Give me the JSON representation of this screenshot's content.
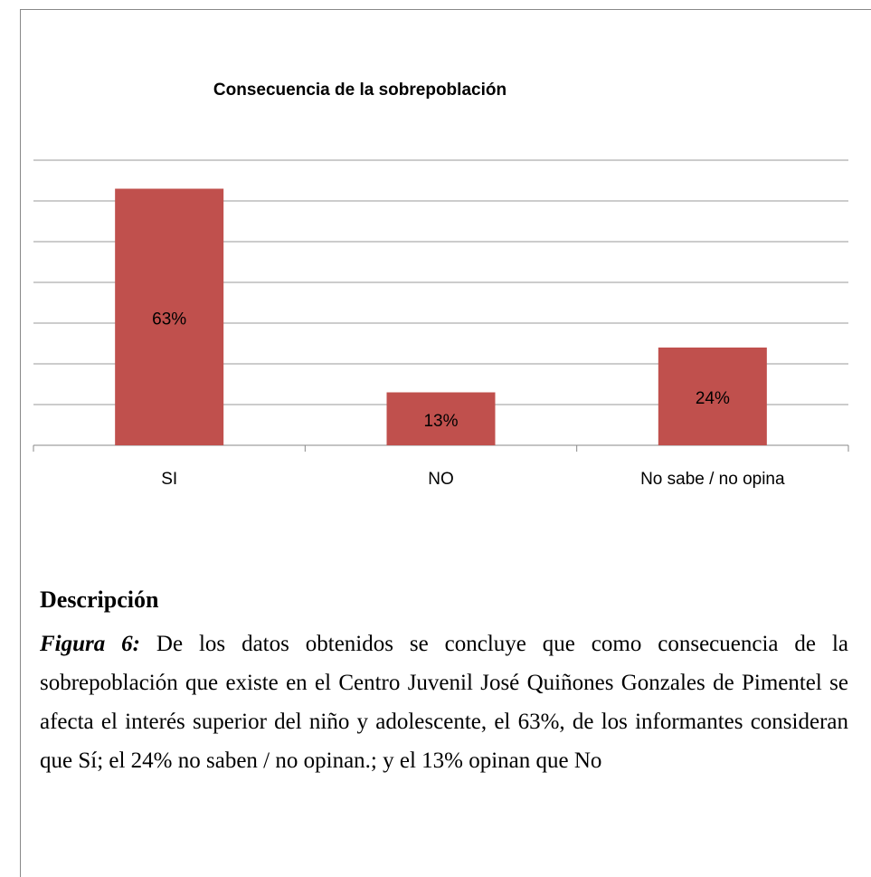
{
  "chart_data": {
    "type": "bar",
    "title": "Consecuencia de la sobrepoblación",
    "categories": [
      "SI",
      "NO",
      "No sabe / no opina"
    ],
    "values": [
      63,
      13,
      24
    ],
    "value_labels": [
      "63%",
      "13%",
      "24%"
    ],
    "color": "#c0504d",
    "ylim": [
      0,
      70
    ],
    "yticks": [
      0,
      10,
      20,
      30,
      40,
      50,
      60,
      70
    ],
    "grid": true
  },
  "description": {
    "heading": "Descripción",
    "figure_label": "Figura 6:",
    "text": "De los datos obtenidos se concluye que como consecuencia de la sobrepoblación que existe en el Centro Juvenil José Quiñones Gonzales de Pimentel se afecta el interés superior del niño y adolescente, el 63%, de los informantes consideran que Sí; el 24% no saben / no opinan.; y el 13% opinan que No"
  }
}
